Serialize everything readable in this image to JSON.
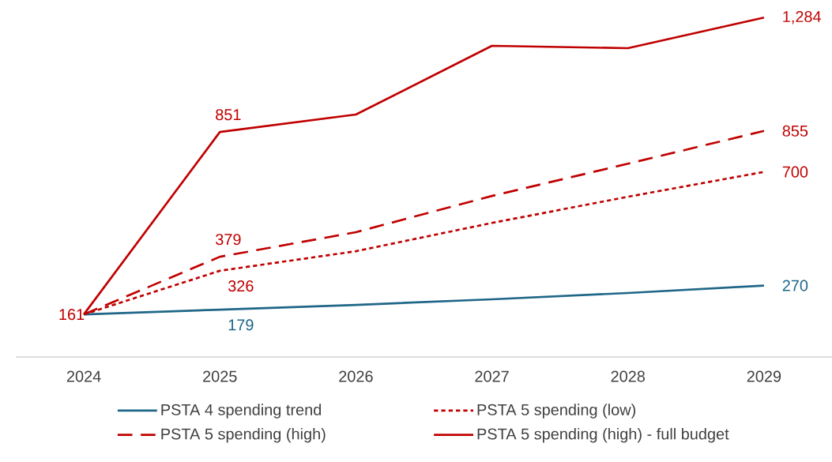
{
  "chart_data": {
    "type": "line",
    "categories": [
      "2024",
      "2025",
      "2026",
      "2027",
      "2028",
      "2029"
    ],
    "series": [
      {
        "name": "PSTA 4 spending trend",
        "color": "#1f6688",
        "line_style": "solid",
        "values": [
          161,
          179,
          197,
          218,
          242,
          270
        ],
        "value_labels": [
          null,
          "179",
          null,
          null,
          null,
          "270"
        ]
      },
      {
        "name": "PSTA 5 spending (low)",
        "color": "#c00000",
        "line_style": "dotted",
        "values": [
          161,
          326,
          400,
          507,
          606,
          700
        ],
        "value_labels": [
          null,
          "326",
          null,
          null,
          null,
          "700"
        ]
      },
      {
        "name": "PSTA 5 spending (high)",
        "color": "#c00000",
        "line_style": "dashed",
        "values": [
          161,
          379,
          472,
          609,
          731,
          855
        ],
        "value_labels": [
          null,
          "379",
          null,
          null,
          null,
          "855"
        ]
      },
      {
        "name": "PSTA 5 spending (high) - full budget",
        "color": "#c00000",
        "line_style": "solid",
        "values": [
          161,
          851,
          917,
          1177,
          1168,
          1284
        ],
        "value_labels": [
          "161",
          "851",
          null,
          null,
          null,
          "1,284"
        ]
      }
    ],
    "tick_labels": "x",
    "legend": "bottom",
    "grid": false,
    "marker": "none"
  }
}
